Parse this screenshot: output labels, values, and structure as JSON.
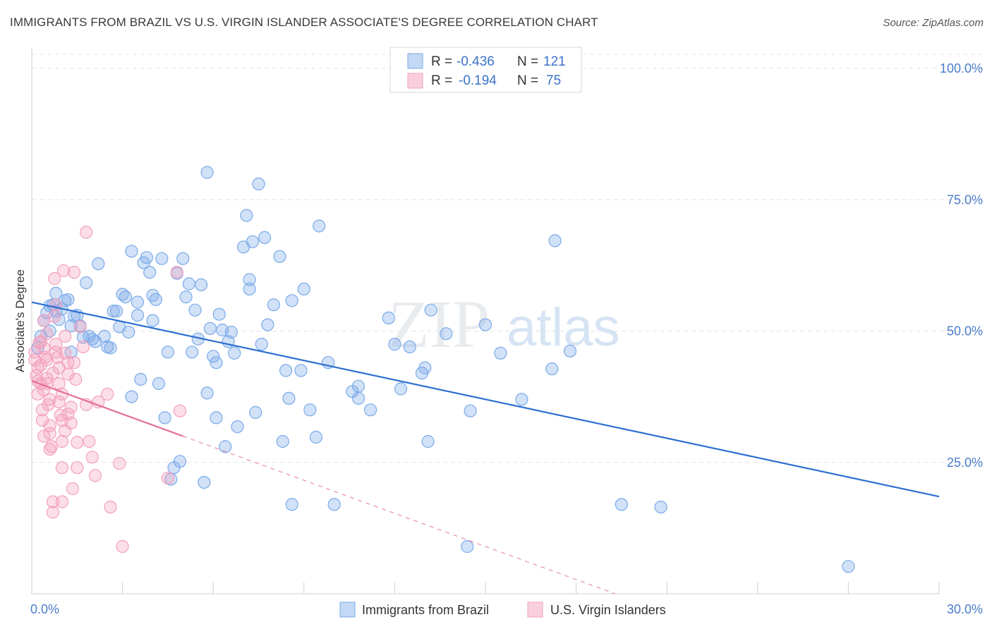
{
  "header": {
    "title": "IMMIGRANTS FROM BRAZIL VS U.S. VIRGIN ISLANDER ASSOCIATE'S DEGREE CORRELATION CHART",
    "source": "Source: ZipAtlas.com"
  },
  "stats": [
    {
      "r_label": "R =",
      "r_value": "-0.436",
      "n_label": "N =",
      "n_value": "121"
    },
    {
      "r_label": "R =",
      "r_value": "-0.194",
      "n_label": "N =",
      "n_value": "75"
    }
  ],
  "watermark": {
    "zip": "ZIP",
    "atlas": "atlas"
  },
  "chart_data": {
    "type": "scatter",
    "xlabel": "",
    "ylabel": "Associate's Degree",
    "xlim": [
      0,
      30
    ],
    "ylim": [
      0,
      105
    ],
    "x_tick_labels": [
      {
        "value": 0,
        "label": "0.0%"
      },
      {
        "value": 30,
        "label": "30.0%"
      }
    ],
    "y_tick_labels": [
      {
        "value": 25,
        "label": "25.0%"
      },
      {
        "value": 50,
        "label": "50.0%"
      },
      {
        "value": 75,
        "label": "75.0%"
      },
      {
        "value": 100,
        "label": "100.0%"
      }
    ],
    "grid": true,
    "legend_position": "bottom-center",
    "series": [
      {
        "name": "Immigrants from Brazil",
        "color": "#7aaae8",
        "line_color": "#2c6fd0",
        "trend": {
          "x": [
            0,
            30
          ],
          "y": [
            55.5,
            18.5
          ],
          "dashed_extension": false
        },
        "points": [
          [
            0.2,
            46.8
          ],
          [
            0.3,
            49.0
          ],
          [
            0.4,
            52.0
          ],
          [
            0.5,
            53.5
          ],
          [
            0.6,
            54.8
          ],
          [
            0.7,
            55.0
          ],
          [
            0.8,
            53.8
          ],
          [
            0.8,
            57.2
          ],
          [
            0.9,
            52.2
          ],
          [
            1.0,
            54.2
          ],
          [
            1.1,
            55.8
          ],
          [
            1.2,
            56.0
          ],
          [
            1.3,
            51.0
          ],
          [
            1.4,
            52.8
          ],
          [
            1.5,
            53.0
          ],
          [
            1.6,
            51.0
          ],
          [
            1.7,
            48.8
          ],
          [
            1.8,
            59.2
          ],
          [
            1.9,
            49.0
          ],
          [
            2.0,
            48.5
          ],
          [
            2.2,
            62.8
          ],
          [
            2.4,
            49.0
          ],
          [
            2.5,
            47.0
          ],
          [
            2.6,
            46.8
          ],
          [
            2.7,
            53.8
          ],
          [
            2.8,
            53.8
          ],
          [
            2.9,
            50.8
          ],
          [
            3.0,
            57.0
          ],
          [
            3.1,
            56.5
          ],
          [
            3.2,
            49.8
          ],
          [
            3.3,
            65.2
          ],
          [
            3.3,
            37.5
          ],
          [
            3.5,
            53.0
          ],
          [
            3.5,
            55.5
          ],
          [
            3.6,
            40.8
          ],
          [
            3.7,
            63.0
          ],
          [
            3.8,
            64.0
          ],
          [
            3.9,
            61.2
          ],
          [
            4.0,
            56.8
          ],
          [
            4.1,
            56.0
          ],
          [
            4.2,
            40.0
          ],
          [
            4.3,
            63.8
          ],
          [
            4.4,
            33.5
          ],
          [
            4.5,
            46.0
          ],
          [
            4.6,
            21.8
          ],
          [
            4.7,
            24.0
          ],
          [
            4.8,
            61.0
          ],
          [
            4.9,
            25.2
          ],
          [
            5.0,
            63.8
          ],
          [
            5.1,
            56.5
          ],
          [
            5.2,
            59.0
          ],
          [
            5.3,
            46.0
          ],
          [
            5.4,
            54.0
          ],
          [
            5.5,
            48.5
          ],
          [
            5.6,
            58.8
          ],
          [
            5.7,
            21.2
          ],
          [
            5.8,
            38.2
          ],
          [
            5.9,
            50.5
          ],
          [
            6.0,
            45.2
          ],
          [
            6.1,
            44.0
          ],
          [
            6.2,
            53.2
          ],
          [
            6.3,
            50.2
          ],
          [
            6.4,
            28.0
          ],
          [
            6.5,
            48.0
          ],
          [
            6.6,
            49.8
          ],
          [
            6.7,
            45.8
          ],
          [
            6.8,
            31.8
          ],
          [
            7.0,
            66.0
          ],
          [
            7.1,
            72.0
          ],
          [
            7.2,
            59.8
          ],
          [
            7.3,
            67.0
          ],
          [
            7.4,
            34.5
          ],
          [
            7.5,
            78.0
          ],
          [
            7.6,
            47.5
          ],
          [
            7.7,
            67.8
          ],
          [
            7.8,
            51.2
          ],
          [
            7.2,
            58.0
          ],
          [
            5.8,
            80.2
          ],
          [
            8.2,
            64.2
          ],
          [
            8.0,
            55.0
          ],
          [
            8.4,
            42.5
          ],
          [
            8.5,
            37.2
          ],
          [
            8.6,
            55.8
          ],
          [
            8.9,
            42.5
          ],
          [
            9.2,
            35.0
          ],
          [
            9.5,
            70.0
          ],
          [
            9.4,
            29.8
          ],
          [
            8.3,
            29.0
          ],
          [
            8.6,
            17.0
          ],
          [
            9.8,
            44.0
          ],
          [
            10.0,
            17.0
          ],
          [
            10.8,
            39.5
          ],
          [
            10.8,
            37.2
          ],
          [
            11.2,
            35.0
          ],
          [
            11.8,
            52.5
          ],
          [
            12.0,
            47.5
          ],
          [
            12.5,
            47.0
          ],
          [
            12.9,
            42.0
          ],
          [
            13.0,
            43.0
          ],
          [
            13.2,
            54.0
          ],
          [
            13.1,
            29.0
          ],
          [
            13.7,
            49.5
          ],
          [
            14.4,
            9.0
          ],
          [
            14.5,
            34.8
          ],
          [
            15.0,
            51.2
          ],
          [
            15.5,
            45.8
          ],
          [
            16.2,
            37.0
          ],
          [
            17.2,
            42.8
          ],
          [
            17.3,
            67.2
          ],
          [
            17.8,
            46.2
          ],
          [
            19.5,
            17.0
          ],
          [
            20.8,
            16.5
          ],
          [
            27.0,
            5.2
          ],
          [
            0.6,
            50.0
          ],
          [
            1.3,
            46.0
          ],
          [
            2.1,
            48.0
          ],
          [
            4.0,
            52.0
          ],
          [
            6.1,
            33.5
          ],
          [
            9.0,
            58.0
          ],
          [
            12.2,
            39.0
          ],
          [
            10.6,
            38.5
          ]
        ]
      },
      {
        "name": "U.S. Virgin Islanders",
        "color": "#f3a0be",
        "line_color": "#e46f94",
        "trend": {
          "x": [
            0,
            5
          ],
          "y": [
            40.5,
            30.0
          ],
          "dashed_to": [
            30,
            0
          ]
        },
        "points": [
          [
            0.1,
            46.0
          ],
          [
            0.1,
            44.5
          ],
          [
            0.15,
            41.5
          ],
          [
            0.2,
            40.5
          ],
          [
            0.2,
            38.0
          ],
          [
            0.25,
            47.8
          ],
          [
            0.3,
            43.5
          ],
          [
            0.3,
            40.0
          ],
          [
            0.35,
            35.0
          ],
          [
            0.35,
            33.0
          ],
          [
            0.4,
            52.0
          ],
          [
            0.4,
            46.8
          ],
          [
            0.45,
            45.0
          ],
          [
            0.5,
            44.5
          ],
          [
            0.5,
            41.0
          ],
          [
            0.5,
            40.0
          ],
          [
            0.55,
            36.0
          ],
          [
            0.6,
            37.0
          ],
          [
            0.6,
            32.0
          ],
          [
            0.6,
            30.5
          ],
          [
            0.65,
            28.0
          ],
          [
            0.7,
            17.5
          ],
          [
            0.7,
            15.5
          ],
          [
            0.75,
            60.0
          ],
          [
            0.75,
            52.8
          ],
          [
            0.8,
            55.0
          ],
          [
            0.8,
            47.5
          ],
          [
            0.85,
            45.0
          ],
          [
            0.9,
            43.0
          ],
          [
            0.9,
            40.0
          ],
          [
            0.95,
            34.0
          ],
          [
            1.0,
            33.0
          ],
          [
            1.0,
            29.0
          ],
          [
            1.0,
            17.5
          ],
          [
            1.0,
            24.0
          ],
          [
            1.05,
            61.5
          ],
          [
            1.1,
            49.0
          ],
          [
            1.1,
            45.8
          ],
          [
            1.2,
            44.0
          ],
          [
            1.2,
            41.8
          ],
          [
            1.2,
            34.2
          ],
          [
            1.3,
            32.5
          ],
          [
            1.35,
            20.0
          ],
          [
            1.4,
            61.2
          ],
          [
            1.4,
            44.0
          ],
          [
            1.45,
            40.8
          ],
          [
            1.5,
            28.8
          ],
          [
            1.5,
            24.0
          ],
          [
            1.6,
            50.8
          ],
          [
            1.7,
            47.0
          ],
          [
            1.8,
            68.8
          ],
          [
            1.8,
            36.0
          ],
          [
            1.9,
            29.0
          ],
          [
            2.0,
            26.0
          ],
          [
            2.1,
            22.5
          ],
          [
            2.2,
            36.5
          ],
          [
            2.5,
            38.0
          ],
          [
            2.6,
            16.5
          ],
          [
            2.9,
            24.8
          ],
          [
            3.0,
            9.0
          ],
          [
            4.5,
            22.0
          ],
          [
            4.8,
            61.2
          ],
          [
            4.9,
            34.8
          ],
          [
            0.3,
            48.0
          ],
          [
            0.5,
            49.5
          ],
          [
            0.7,
            42.0
          ],
          [
            0.4,
            38.8
          ],
          [
            0.9,
            36.5
          ],
          [
            1.1,
            31.0
          ],
          [
            0.2,
            43.0
          ],
          [
            0.6,
            27.5
          ],
          [
            1.3,
            35.5
          ],
          [
            0.8,
            46.0
          ],
          [
            0.4,
            30.0
          ],
          [
            1.0,
            38.0
          ]
        ]
      }
    ]
  }
}
